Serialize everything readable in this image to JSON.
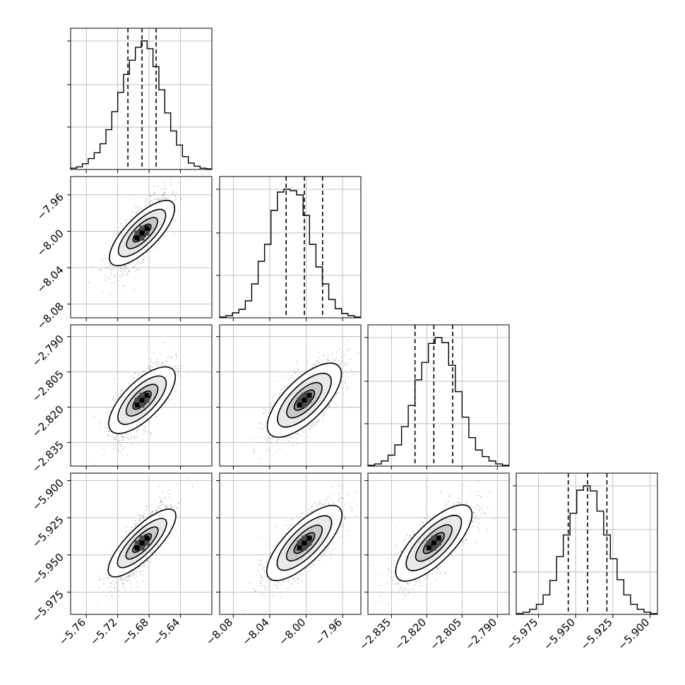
{
  "chart_data": {
    "type": "corner",
    "n_params": 4,
    "colors": {
      "line": "#000000",
      "grid": "#b0b0b0",
      "points": "#8c8c8c"
    },
    "grid": true,
    "params": [
      {
        "range": [
          -5.78,
          -5.6
        ],
        "ticks": [
          -5.76,
          -5.72,
          -5.68,
          -5.64
        ],
        "tick_labels": [
          "−5.76",
          "−5.72",
          "−5.68",
          "−5.64"
        ],
        "quantiles": [
          -5.707,
          -5.689,
          -5.671
        ],
        "hist_counts": [
          2,
          4,
          9,
          17,
          26,
          40,
          62,
          90,
          120,
          148,
          170,
          190,
          200,
          188,
          160,
          124,
          88,
          60,
          38,
          20,
          10,
          5,
          2,
          1
        ]
      },
      {
        "range": [
          -8.095,
          -7.94
        ],
        "ticks": [
          -8.08,
          -8.04,
          -8.0,
          -7.96
        ],
        "tick_labels": [
          "−8.08",
          "−8.04",
          "−8.00",
          "−7.96"
        ],
        "quantiles": [
          -8.022,
          -8.002,
          -7.982
        ],
        "hist_counts": [
          1,
          3,
          7,
          12,
          24,
          48,
          80,
          104,
          152,
          178,
          182,
          180,
          174,
          145,
          104,
          72,
          48,
          26,
          13,
          6,
          3,
          1
        ]
      },
      {
        "range": [
          -2.845,
          -2.785
        ],
        "ticks": [
          -2.835,
          -2.82,
          -2.805,
          -2.79
        ],
        "tick_labels": [
          "−2.835",
          "−2.820",
          "−2.805",
          "−2.790"
        ],
        "quantiles": [
          -2.825,
          -2.817,
          -2.809
        ],
        "hist_counts": [
          1,
          3,
          7,
          15,
          29,
          54,
          83,
          118,
          142,
          168,
          176,
          169,
          138,
          102,
          67,
          39,
          22,
          13,
          7,
          3,
          1
        ]
      },
      {
        "range": [
          -5.99,
          -5.895
        ],
        "ticks": [
          -5.975,
          -5.95,
          -5.925,
          -5.9
        ],
        "tick_labels": [
          "−5.975",
          "−5.950",
          "−5.925",
          "−5.900"
        ],
        "quantiles": [
          -5.955,
          -5.942,
          -5.929
        ],
        "hist_counts": [
          1,
          3,
          7,
          14,
          27,
          47,
          80,
          110,
          140,
          172,
          178,
          171,
          143,
          110,
          77,
          48,
          27,
          14,
          7,
          3,
          1
        ]
      }
    ],
    "pairs": [
      {
        "row": 1,
        "col": 0,
        "correlation": 0.75
      },
      {
        "row": 2,
        "col": 0,
        "correlation": 0.7
      },
      {
        "row": 2,
        "col": 1,
        "correlation": 0.7
      },
      {
        "row": 3,
        "col": 0,
        "correlation": 0.8
      },
      {
        "row": 3,
        "col": 1,
        "correlation": 0.75
      },
      {
        "row": 3,
        "col": 2,
        "correlation": 0.75
      }
    ]
  }
}
